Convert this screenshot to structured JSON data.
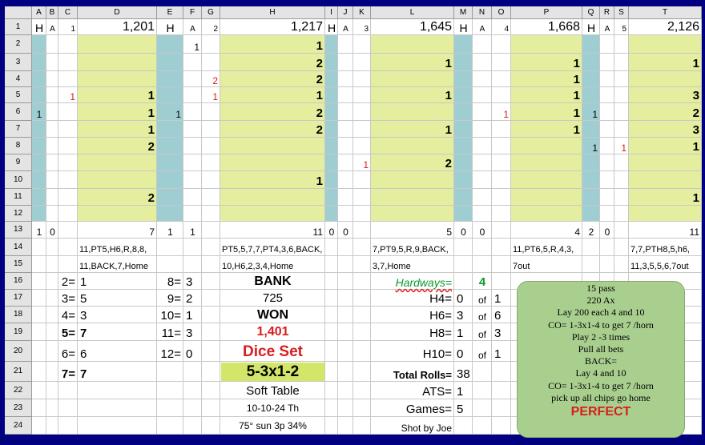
{
  "columns": [
    "A",
    "B",
    "C",
    "D",
    "E",
    "F",
    "G",
    "H",
    "I",
    "J",
    "K",
    "L",
    "M",
    "N",
    "O",
    "P",
    "Q",
    "R",
    "S",
    "T"
  ],
  "rows": [
    "1",
    "2",
    "3",
    "4",
    "5",
    "6",
    "7",
    "8",
    "9",
    "10",
    "11",
    "12",
    "13",
    "14",
    "15",
    "16",
    "17",
    "18",
    "19",
    "20",
    "21",
    "22",
    "23",
    "24"
  ],
  "colors": {
    "teal": "#9ecdd2",
    "yellow": "#e5ed9e",
    "red": "#d81d1d",
    "green": "#0a9a2a",
    "dice_bg": "#d3e66a",
    "note_bg": "#a9cf8f"
  },
  "cells": [
    {
      "c": "A",
      "r": 1,
      "v": "H",
      "a": "c",
      "s": 14
    },
    {
      "c": "B",
      "r": 1,
      "v": "A",
      "a": "c",
      "s": 10
    },
    {
      "c": "C",
      "r": 1,
      "v": "1",
      "a": "r",
      "s": 10
    },
    {
      "c": "D",
      "r": 1,
      "v": "1,201",
      "a": "r",
      "s": 16
    },
    {
      "c": "E",
      "r": 1,
      "v": "H",
      "a": "c",
      "s": 14
    },
    {
      "c": "F",
      "r": 1,
      "v": "A",
      "a": "c",
      "s": 10
    },
    {
      "c": "G",
      "r": 1,
      "v": "2",
      "a": "r",
      "s": 10
    },
    {
      "c": "H",
      "r": 1,
      "v": "1,217",
      "a": "r",
      "s": 16
    },
    {
      "c": "I",
      "r": 1,
      "v": "H",
      "a": "c",
      "s": 14
    },
    {
      "c": "J",
      "r": 1,
      "v": "A",
      "a": "c",
      "s": 10
    },
    {
      "c": "K",
      "r": 1,
      "v": "3",
      "a": "r",
      "s": 10
    },
    {
      "c": "L",
      "r": 1,
      "v": "1,645",
      "a": "r",
      "s": 16
    },
    {
      "c": "M",
      "r": 1,
      "v": "H",
      "a": "c",
      "s": 14
    },
    {
      "c": "N",
      "r": 1,
      "v": "A",
      "a": "c",
      "s": 10
    },
    {
      "c": "O",
      "r": 1,
      "v": "4",
      "a": "r",
      "s": 10
    },
    {
      "c": "P",
      "r": 1,
      "v": "1,668",
      "a": "r",
      "s": 16
    },
    {
      "c": "Q",
      "r": 1,
      "v": "H",
      "a": "c",
      "s": 14
    },
    {
      "c": "R",
      "r": 1,
      "v": "A",
      "a": "c",
      "s": 10
    },
    {
      "c": "S",
      "r": 1,
      "v": "5",
      "a": "r",
      "s": 10
    },
    {
      "c": "T",
      "r": 1,
      "v": "2,126",
      "a": "r",
      "s": 16
    },
    {
      "c": "F",
      "r": 2,
      "v": "1",
      "a": "r",
      "s": 12
    },
    {
      "c": "H",
      "r": 2,
      "v": "1",
      "a": "r",
      "b": 1
    },
    {
      "c": "H",
      "r": 3,
      "v": "2",
      "a": "r",
      "b": 1
    },
    {
      "c": "L",
      "r": 3,
      "v": "1",
      "a": "r",
      "b": 1
    },
    {
      "c": "P",
      "r": 3,
      "v": "1",
      "a": "r",
      "b": 1
    },
    {
      "c": "T",
      "r": 3,
      "v": "1",
      "a": "r",
      "b": 1
    },
    {
      "c": "G",
      "r": 4,
      "v": "2",
      "a": "r",
      "s": 12,
      "col": "red"
    },
    {
      "c": "H",
      "r": 4,
      "v": "2",
      "a": "r",
      "b": 1
    },
    {
      "c": "P",
      "r": 4,
      "v": "1",
      "a": "r",
      "b": 1
    },
    {
      "c": "C",
      "r": 5,
      "v": "1",
      "a": "r",
      "s": 12,
      "col": "red"
    },
    {
      "c": "D",
      "r": 5,
      "v": "1",
      "a": "r",
      "b": 1
    },
    {
      "c": "G",
      "r": 5,
      "v": "1",
      "a": "r",
      "s": 12,
      "col": "red"
    },
    {
      "c": "H",
      "r": 5,
      "v": "1",
      "a": "r",
      "b": 1
    },
    {
      "c": "L",
      "r": 5,
      "v": "1",
      "a": "r",
      "b": 1
    },
    {
      "c": "P",
      "r": 5,
      "v": "1",
      "a": "r",
      "b": 1
    },
    {
      "c": "T",
      "r": 5,
      "v": "3",
      "a": "r",
      "b": 1
    },
    {
      "c": "A",
      "r": 6,
      "v": "1",
      "a": "c",
      "s": 12
    },
    {
      "c": "D",
      "r": 6,
      "v": "1",
      "a": "r",
      "b": 1
    },
    {
      "c": "E",
      "r": 6,
      "v": "1",
      "a": "r",
      "s": 12
    },
    {
      "c": "H",
      "r": 6,
      "v": "2",
      "a": "r",
      "b": 1
    },
    {
      "c": "O",
      "r": 6,
      "v": "1",
      "a": "r",
      "s": 12,
      "col": "red"
    },
    {
      "c": "P",
      "r": 6,
      "v": "1",
      "a": "r",
      "b": 1
    },
    {
      "c": "Q",
      "r": 6,
      "v": "1",
      "a": "r",
      "s": 12
    },
    {
      "c": "T",
      "r": 6,
      "v": "2",
      "a": "r",
      "b": 1
    },
    {
      "c": "D",
      "r": 7,
      "v": "1",
      "a": "r",
      "b": 1
    },
    {
      "c": "H",
      "r": 7,
      "v": "2",
      "a": "r",
      "b": 1
    },
    {
      "c": "L",
      "r": 7,
      "v": "1",
      "a": "r",
      "b": 1
    },
    {
      "c": "P",
      "r": 7,
      "v": "1",
      "a": "r",
      "b": 1
    },
    {
      "c": "T",
      "r": 7,
      "v": "3",
      "a": "r",
      "b": 1
    },
    {
      "c": "D",
      "r": 8,
      "v": "2",
      "a": "r",
      "b": 1
    },
    {
      "c": "Q",
      "r": 8,
      "v": "1",
      "a": "r",
      "s": 12
    },
    {
      "c": "S",
      "r": 8,
      "v": "1",
      "a": "r",
      "s": 12,
      "col": "red"
    },
    {
      "c": "T",
      "r": 8,
      "v": "1",
      "a": "r",
      "b": 1
    },
    {
      "c": "K",
      "r": 9,
      "v": "1",
      "a": "r",
      "s": 12,
      "col": "red"
    },
    {
      "c": "L",
      "r": 9,
      "v": "2",
      "a": "r",
      "b": 1
    },
    {
      "c": "H",
      "r": 10,
      "v": "1",
      "a": "r",
      "b": 1
    },
    {
      "c": "D",
      "r": 11,
      "v": "2",
      "a": "r",
      "b": 1
    },
    {
      "c": "T",
      "r": 11,
      "v": "1",
      "a": "r",
      "b": 1
    },
    {
      "c": "A",
      "r": 13,
      "v": "1",
      "a": "c",
      "s": 12
    },
    {
      "c": "B",
      "r": 13,
      "v": "0",
      "a": "c",
      "s": 12
    },
    {
      "c": "D",
      "r": 13,
      "v": "7",
      "a": "r",
      "s": 12
    },
    {
      "c": "E",
      "r": 13,
      "v": "1",
      "a": "c",
      "s": 12
    },
    {
      "c": "F",
      "r": 13,
      "v": "1",
      "a": "c",
      "s": 12
    },
    {
      "c": "H",
      "r": 13,
      "v": "11",
      "a": "r",
      "s": 12
    },
    {
      "c": "I",
      "r": 13,
      "v": "0",
      "a": "c",
      "s": 12
    },
    {
      "c": "J",
      "r": 13,
      "v": "0",
      "a": "c",
      "s": 12
    },
    {
      "c": "L",
      "r": 13,
      "v": "5",
      "a": "r",
      "s": 12
    },
    {
      "c": "M",
      "r": 13,
      "v": "0",
      "a": "c",
      "s": 12
    },
    {
      "c": "N",
      "r": 13,
      "v": "0",
      "a": "c",
      "s": 12
    },
    {
      "c": "P",
      "r": 13,
      "v": "4",
      "a": "r",
      "s": 12
    },
    {
      "c": "Q",
      "r": 13,
      "v": "2",
      "a": "c",
      "s": 12
    },
    {
      "c": "R",
      "r": 13,
      "v": "0",
      "a": "c",
      "s": 12
    },
    {
      "c": "T",
      "r": 13,
      "v": "11",
      "a": "r",
      "s": 12
    },
    {
      "c": "D",
      "r": 14,
      "v": "11,PT5,H6,R,8,8,",
      "a": "l",
      "s": 11,
      "ind": 1
    },
    {
      "c": "H",
      "r": 14,
      "v": "PT5,5,7,7,PT4,3,6,BACK,",
      "a": "l",
      "s": 11,
      "ind": 1
    },
    {
      "c": "L",
      "r": 14,
      "v": "7,PT9,5,R,9,BACK,",
      "a": "l",
      "s": 11,
      "ind": 1
    },
    {
      "c": "P",
      "r": 14,
      "v": "11,PT6,5,R,4,3,",
      "a": "l",
      "s": 11,
      "ind": 1
    },
    {
      "c": "T",
      "r": 14,
      "v": "7,7,PTH8,5,h6,",
      "a": "l",
      "s": 11,
      "ind": 1
    },
    {
      "c": "D",
      "r": 15,
      "v": "11,BACK,7,Home",
      "a": "l",
      "s": 11,
      "ind": 1
    },
    {
      "c": "H",
      "r": 15,
      "v": "10,H6,2,3,4,Home",
      "a": "l",
      "s": 11,
      "ind": 1
    },
    {
      "c": "L",
      "r": 15,
      "v": "3,7,Home",
      "a": "l",
      "s": 11,
      "ind": 1
    },
    {
      "c": "P",
      "r": 15,
      "v": "7out",
      "a": "l",
      "s": 11,
      "ind": 1
    },
    {
      "c": "T",
      "r": 15,
      "v": "11,3,5,5,6,7out",
      "a": "l",
      "s": 11,
      "ind": 1
    },
    {
      "c": "C",
      "r": 16,
      "v": "2=",
      "a": "r"
    },
    {
      "c": "D",
      "r": 16,
      "v": "1",
      "a": "l"
    },
    {
      "c": "E",
      "r": 16,
      "v": "8=",
      "a": "r"
    },
    {
      "c": "F",
      "r": 16,
      "v": "3",
      "a": "l"
    },
    {
      "c": "C",
      "r": 17,
      "v": "3=",
      "a": "r"
    },
    {
      "c": "D",
      "r": 17,
      "v": "5",
      "a": "l"
    },
    {
      "c": "E",
      "r": 17,
      "v": "9=",
      "a": "r"
    },
    {
      "c": "F",
      "r": 17,
      "v": "2",
      "a": "l"
    },
    {
      "c": "C",
      "r": 18,
      "v": "4=",
      "a": "r"
    },
    {
      "c": "D",
      "r": 18,
      "v": "3",
      "a": "l"
    },
    {
      "c": "E",
      "r": 18,
      "v": "10=",
      "a": "r"
    },
    {
      "c": "F",
      "r": 18,
      "v": "1",
      "a": "l"
    },
    {
      "c": "C",
      "r": 19,
      "v": "5=",
      "a": "r",
      "b": 1
    },
    {
      "c": "D",
      "r": 19,
      "v": "7",
      "a": "l",
      "b": 1
    },
    {
      "c": "E",
      "r": 19,
      "v": "11=",
      "a": "r"
    },
    {
      "c": "F",
      "r": 19,
      "v": "3",
      "a": "l"
    },
    {
      "c": "C",
      "r": 20,
      "v": "6=",
      "a": "r"
    },
    {
      "c": "D",
      "r": 20,
      "v": "6",
      "a": "l"
    },
    {
      "c": "E",
      "r": 20,
      "v": "12=",
      "a": "r"
    },
    {
      "c": "F",
      "r": 20,
      "v": "0",
      "a": "l"
    },
    {
      "c": "C",
      "r": 21,
      "v": "7=",
      "a": "r",
      "b": 1
    },
    {
      "c": "D",
      "r": 21,
      "v": "7",
      "a": "l",
      "b": 1
    },
    {
      "c": "H",
      "r": 16,
      "v": "BANK",
      "a": "c",
      "b": 1,
      "s": 16
    },
    {
      "c": "H",
      "r": 17,
      "v": "725",
      "a": "c",
      "s": 15
    },
    {
      "c": "H",
      "r": 18,
      "v": "WON",
      "a": "c",
      "b": 1,
      "s": 16
    },
    {
      "c": "H",
      "r": 19,
      "v": "1,401",
      "a": "c",
      "b": 1,
      "s": 16,
      "col": "red"
    },
    {
      "c": "H",
      "r": 20,
      "v": "Dice Set",
      "a": "c",
      "b": 1,
      "s": 19,
      "col": "red"
    },
    {
      "c": "H",
      "r": 21,
      "v": "5-3x1-2",
      "a": "c",
      "b": 1,
      "s": 19,
      "bg": "dice_bg"
    },
    {
      "c": "H",
      "r": 22,
      "v": "Soft Table",
      "a": "c",
      "s": 15
    },
    {
      "c": "H",
      "r": 23,
      "v": "10-10-24 Th",
      "a": "c",
      "s": 12
    },
    {
      "c": "H",
      "r": 24,
      "v": "75° sun 3p 34%",
      "a": "c",
      "s": 12
    },
    {
      "c": "L",
      "r": 16,
      "v": "Hardways=",
      "a": "r",
      "s": 14,
      "i": 1,
      "col": "green",
      "u": 1
    },
    {
      "c": "N",
      "r": 16,
      "v": "4",
      "a": "c",
      "b": 1,
      "s": 15,
      "col": "green"
    },
    {
      "c": "L",
      "r": 17,
      "v": "H4=",
      "a": "r"
    },
    {
      "c": "M",
      "r": 17,
      "v": "0",
      "a": "l"
    },
    {
      "c": "N",
      "r": 17,
      "v": "of",
      "a": "c",
      "s": 12
    },
    {
      "c": "O",
      "r": 17,
      "v": "1",
      "a": "l"
    },
    {
      "c": "L",
      "r": 18,
      "v": "H6=",
      "a": "r"
    },
    {
      "c": "M",
      "r": 18,
      "v": "3",
      "a": "l"
    },
    {
      "c": "N",
      "r": 18,
      "v": "of",
      "a": "c",
      "s": 12
    },
    {
      "c": "O",
      "r": 18,
      "v": "6",
      "a": "l"
    },
    {
      "c": "L",
      "r": 19,
      "v": "H8=",
      "a": "r"
    },
    {
      "c": "M",
      "r": 19,
      "v": "1",
      "a": "l"
    },
    {
      "c": "N",
      "r": 19,
      "v": "of",
      "a": "c",
      "s": 12
    },
    {
      "c": "O",
      "r": 19,
      "v": "3",
      "a": "l"
    },
    {
      "c": "L",
      "r": 20,
      "v": "H10=",
      "a": "r"
    },
    {
      "c": "M",
      "r": 20,
      "v": "0",
      "a": "l"
    },
    {
      "c": "N",
      "r": 20,
      "v": "of",
      "a": "c",
      "s": 12
    },
    {
      "c": "O",
      "r": 20,
      "v": "1",
      "a": "l"
    },
    {
      "c": "L",
      "r": 21,
      "v": "Total Rolls=",
      "a": "r",
      "b": 1,
      "s": 13
    },
    {
      "c": "M",
      "r": 21,
      "v": "38",
      "a": "l"
    },
    {
      "c": "L",
      "r": 22,
      "v": "ATS=",
      "a": "r"
    },
    {
      "c": "M",
      "r": 22,
      "v": "1",
      "a": "l"
    },
    {
      "c": "L",
      "r": 23,
      "v": "Games=",
      "a": "r"
    },
    {
      "c": "M",
      "r": 23,
      "v": "5",
      "a": "l"
    },
    {
      "c": "L",
      "r": 24,
      "v": "Shot by Joe",
      "a": "r",
      "s": 12
    }
  ],
  "note": {
    "lines": [
      "15 pass",
      "220 Ax",
      "Lay  200 each 4 and 10",
      "CO= 1-3x1-4 to get 7 /horn",
      "Play 2 -3 times",
      "Pull all bets",
      "BACK=",
      "Lay 4 and 10",
      "CO= 1-3x1-4 to get 7 /horn",
      "pick up all chips go home"
    ],
    "emphasis": "PERFECT"
  }
}
